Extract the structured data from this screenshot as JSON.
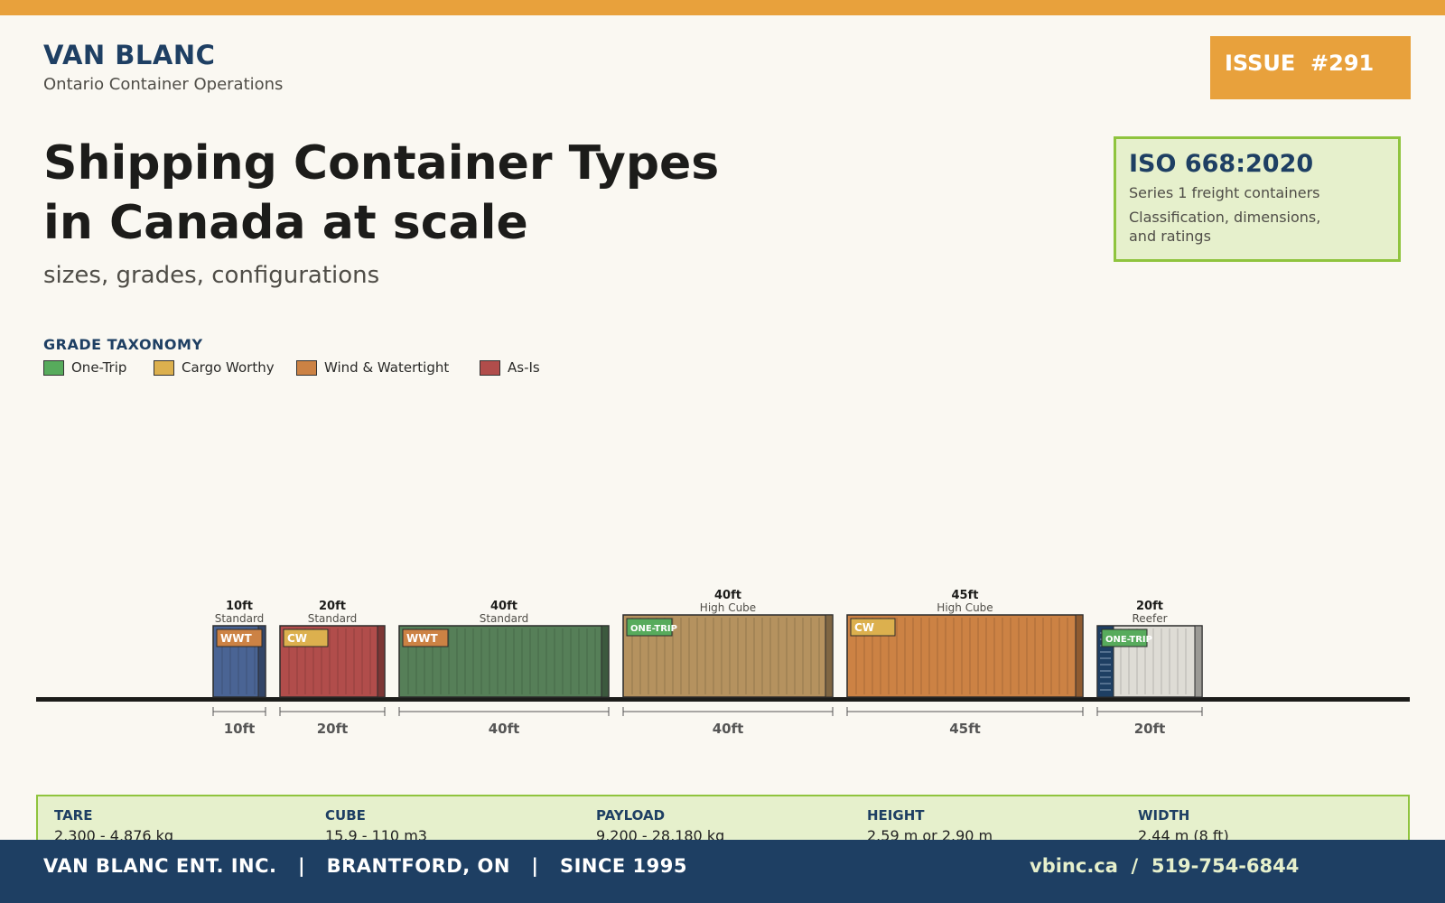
{
  "header": {
    "brand": "VAN BLANC",
    "brand_subtitle": "Ontario Container Operations",
    "issue": "ISSUE  #291"
  },
  "headline": {
    "line1": "Shipping Container Types",
    "line2": "in Canada at scale",
    "subtitle": "sizes, grades, configurations"
  },
  "iso": {
    "title": "ISO 668:2020",
    "line1": "Series 1 freight containers",
    "line2": "Classification, dimensions,",
    "line3": "and ratings"
  },
  "taxonomy": {
    "title": "GRADE TAXONOMY",
    "grades": [
      {
        "label": "One-Trip",
        "color": "#57ab5c"
      },
      {
        "label": "Cargo Worthy",
        "color": "#dcb04e"
      },
      {
        "label": "Wind & Watertight",
        "color": "#cc8244"
      },
      {
        "label": "As-Is",
        "color": "#b14d4b"
      }
    ]
  },
  "containers": [
    {
      "size": "10ft",
      "type": "Standard",
      "grade": "WWT",
      "grade_color": "#cc8244",
      "color": "#4a6494",
      "dim_label": "10ft",
      "length_ft": 10,
      "high_cube": false,
      "reefer": false
    },
    {
      "size": "20ft",
      "type": "Standard",
      "grade": "CW",
      "grade_color": "#dcb04e",
      "color": "#b14d4b",
      "dim_label": "20ft",
      "length_ft": 20,
      "high_cube": false,
      "reefer": false
    },
    {
      "size": "40ft",
      "type": "Standard",
      "grade": "WWT",
      "grade_color": "#cc8244",
      "color": "#567f58",
      "dim_label": "40ft",
      "length_ft": 40,
      "high_cube": false,
      "reefer": false
    },
    {
      "size": "40ft",
      "type": "High Cube",
      "grade": "ONE-TRIP",
      "grade_color": "#57ab5c",
      "color": "#b5925f",
      "dim_label": "40ft",
      "length_ft": 40,
      "high_cube": true,
      "reefer": false
    },
    {
      "size": "45ft",
      "type": "High Cube",
      "grade": "CW",
      "grade_color": "#dcb04e",
      "color": "#cc8244",
      "dim_label": "45ft",
      "length_ft": 45,
      "high_cube": true,
      "reefer": false
    },
    {
      "size": "20ft",
      "type": "Reefer",
      "grade": "ONE-TRIP",
      "grade_color": "#57ab5c",
      "color": "#dedcd5",
      "dim_label": "20ft",
      "length_ft": 20,
      "high_cube": false,
      "reefer": true
    }
  ],
  "specs": [
    {
      "label": "TARE",
      "value": "2,300 - 4,876 kg"
    },
    {
      "label": "CUBE",
      "value": "15.9 - 110 m3"
    },
    {
      "label": "PAYLOAD",
      "value": "9,200 - 28,180 kg"
    },
    {
      "label": "HEIGHT",
      "value": "2.59 m or 2.90 m"
    },
    {
      "label": "WIDTH",
      "value": "2.44 m (8 ft)"
    }
  ],
  "footer": {
    "left": "VAN BLANC ENT. INC.   |   BRANTFORD, ON   |   SINCE 1995",
    "right": "vbinc.ca  /  519-754-6844"
  }
}
